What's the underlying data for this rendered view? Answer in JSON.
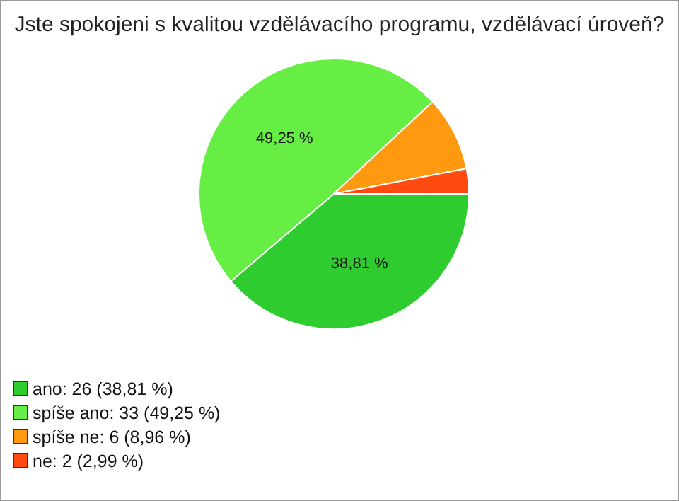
{
  "chart_data": {
    "type": "pie",
    "title": "Jste spokojeni s kvalitou vzdělávacího programu, vzdělávací úroveň?",
    "categories": [
      "ano: 26 (38,81 %)",
      "spíše ano: 33 (49,25 %)",
      "spíše ne: 6 (8,96 %)",
      "ne: 2 (2,99 %)"
    ],
    "values": [
      38.81,
      49.25,
      8.96,
      2.99
    ],
    "colors": [
      "#2ecc2e",
      "#66ee44",
      "#ff9a10",
      "#ff4a10"
    ],
    "value_labels": [
      "38,81 %",
      "49,25 %",
      null,
      null
    ],
    "legend": "bottom left"
  }
}
